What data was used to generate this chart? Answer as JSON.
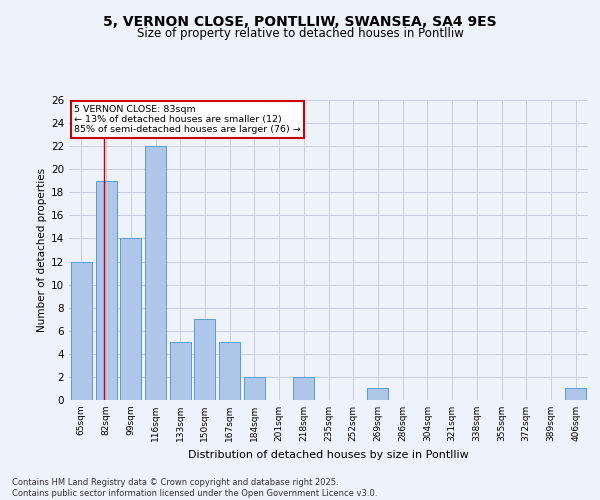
{
  "title": "5, VERNON CLOSE, PONTLLIW, SWANSEA, SA4 9ES",
  "subtitle": "Size of property relative to detached houses in Pontlliw",
  "xlabel": "Distribution of detached houses by size in Pontlliw",
  "ylabel": "Number of detached properties",
  "categories": [
    "65sqm",
    "82sqm",
    "99sqm",
    "116sqm",
    "133sqm",
    "150sqm",
    "167sqm",
    "184sqm",
    "201sqm",
    "218sqm",
    "235sqm",
    "252sqm",
    "269sqm",
    "286sqm",
    "304sqm",
    "321sqm",
    "338sqm",
    "355sqm",
    "372sqm",
    "389sqm",
    "406sqm"
  ],
  "values": [
    12,
    19,
    14,
    22,
    5,
    7,
    5,
    2,
    0,
    2,
    0,
    0,
    1,
    0,
    0,
    0,
    0,
    0,
    0,
    0,
    1
  ],
  "bar_color": "#aec6e8",
  "bar_edge_color": "#5b9bd5",
  "annotation_box_color": "#cc0000",
  "annotation_text": "5 VERNON CLOSE: 83sqm\n← 13% of detached houses are smaller (12)\n85% of semi-detached houses are larger (76) →",
  "ylim": [
    0,
    26
  ],
  "yticks": [
    0,
    2,
    4,
    6,
    8,
    10,
    12,
    14,
    16,
    18,
    20,
    22,
    24,
    26
  ],
  "footer_text": "Contains HM Land Registry data © Crown copyright and database right 2025.\nContains public sector information licensed under the Open Government Licence v3.0.",
  "bg_color": "#eef2fa",
  "plot_bg_color": "#eef2fa",
  "grid_color": "#c8d0e0"
}
